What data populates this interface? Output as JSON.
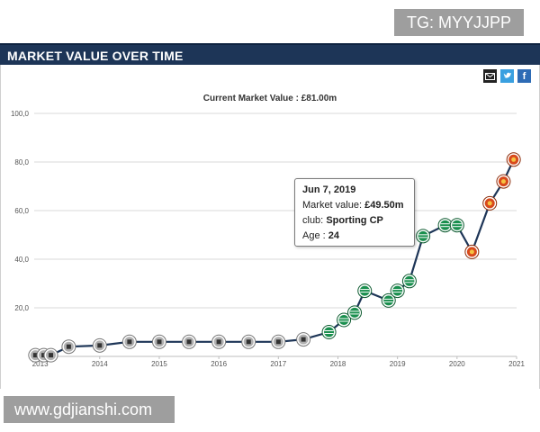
{
  "banner": {
    "tg_label": "TG: MYYJJPP"
  },
  "header": {
    "title": "MARKET VALUE OVER TIME"
  },
  "share": {
    "mail_icon": "envelope-icon",
    "twitter_icon": "twitter-icon",
    "facebook_icon": "facebook-icon"
  },
  "tooltip": {
    "date": "Jun 7, 2019",
    "mv_label": "Market value:",
    "mv_value": "£49.50m",
    "club_label": "club:",
    "club_value": "Sporting CP",
    "age_label": "Age :",
    "age_value": "24"
  },
  "watermark": {
    "text": "www.gdjianshi.com"
  },
  "chart_data": {
    "type": "line",
    "title": "Current Market Value : £81.00m",
    "xlabel": "",
    "ylabel": "",
    "xlim": [
      2012.9,
      2021.0
    ],
    "ylim": [
      0,
      100
    ],
    "x_ticks": [
      "2013",
      "2014",
      "2015",
      "2016",
      "2017",
      "2018",
      "2019",
      "2020",
      "2021"
    ],
    "y_ticks": [
      "20,0",
      "40,0",
      "60,0",
      "80,0",
      "100,0"
    ],
    "grid": true,
    "colors": {
      "line": "#1d3557",
      "grid": "#d8d8d8",
      "sporting": "#1a8f4e",
      "manutd": "#d8491c",
      "other": "#b0b0b0"
    },
    "series": [
      {
        "values": [
          {
            "x": 2012.92,
            "y": 0.5,
            "club": "other"
          },
          {
            "x": 2013.06,
            "y": 0.5,
            "club": "other"
          },
          {
            "x": 2013.18,
            "y": 0.5,
            "club": "other"
          },
          {
            "x": 2013.48,
            "y": 4,
            "club": "other"
          },
          {
            "x": 2014.0,
            "y": 4.5,
            "club": "other"
          },
          {
            "x": 2014.5,
            "y": 6,
            "club": "other"
          },
          {
            "x": 2015.0,
            "y": 6,
            "club": "other"
          },
          {
            "x": 2015.5,
            "y": 6,
            "club": "other"
          },
          {
            "x": 2016.0,
            "y": 6,
            "club": "other"
          },
          {
            "x": 2016.5,
            "y": 6,
            "club": "other"
          },
          {
            "x": 2017.0,
            "y": 6,
            "club": "other"
          },
          {
            "x": 2017.42,
            "y": 7,
            "club": "other"
          },
          {
            "x": 2017.85,
            "y": 10,
            "club": "sporting"
          },
          {
            "x": 2018.1,
            "y": 15,
            "club": "sporting"
          },
          {
            "x": 2018.28,
            "y": 18,
            "club": "sporting"
          },
          {
            "x": 2018.45,
            "y": 27,
            "club": "sporting"
          },
          {
            "x": 2018.85,
            "y": 23,
            "club": "sporting"
          },
          {
            "x": 2019.0,
            "y": 27,
            "club": "sporting"
          },
          {
            "x": 2019.2,
            "y": 31,
            "club": "sporting"
          },
          {
            "x": 2019.43,
            "y": 49.5,
            "club": "sporting"
          },
          {
            "x": 2019.8,
            "y": 54,
            "club": "sporting"
          },
          {
            "x": 2020.0,
            "y": 54,
            "club": "sporting"
          },
          {
            "x": 2020.25,
            "y": 43,
            "club": "manutd"
          },
          {
            "x": 2020.55,
            "y": 63,
            "club": "manutd"
          },
          {
            "x": 2020.78,
            "y": 72,
            "club": "manutd"
          },
          {
            "x": 2020.95,
            "y": 81,
            "club": "manutd"
          }
        ]
      }
    ]
  }
}
